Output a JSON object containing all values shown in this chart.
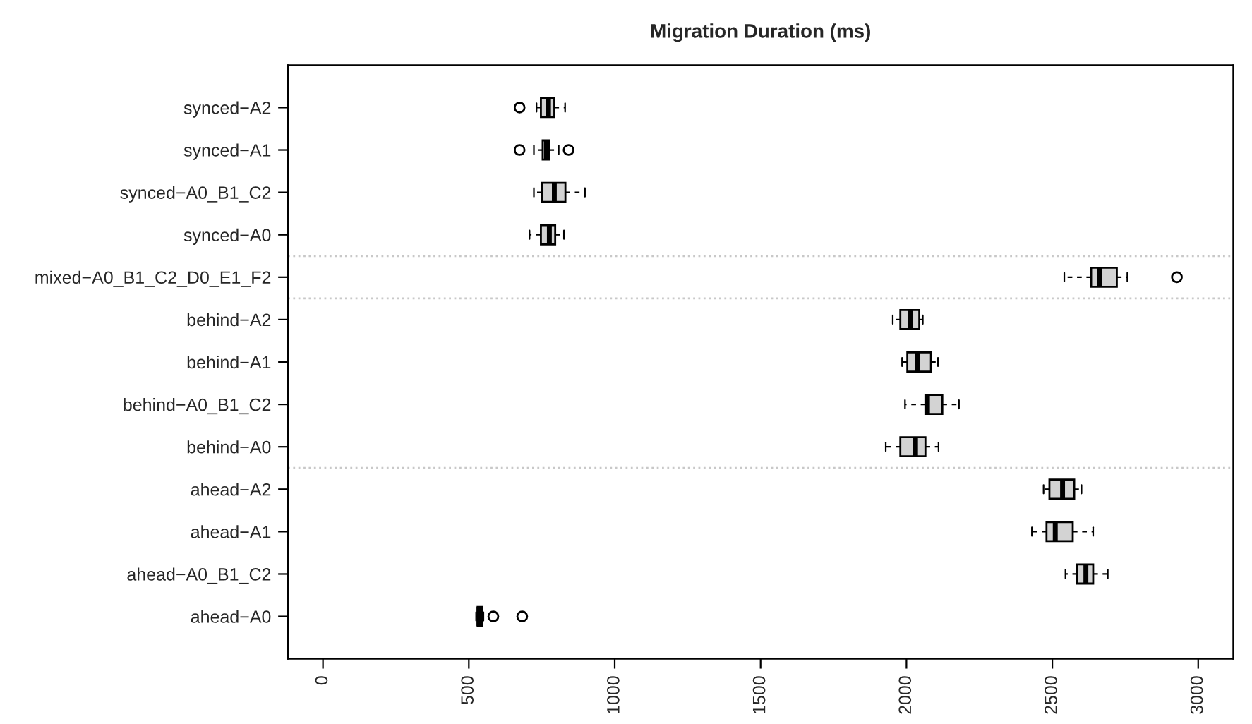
{
  "chart_data": {
    "type": "box",
    "title": "Migration Duration (ms)",
    "orientation": "horizontal",
    "categories": [
      "synced−A2",
      "synced−A1",
      "synced−A0_B1_C2",
      "synced−A0",
      "mixed−A0_B1_C2_D0_E1_F2",
      "behind−A2",
      "behind−A1",
      "behind−A0_B1_C2",
      "behind−A0",
      "ahead−A2",
      "ahead−A1",
      "ahead−A0_B1_C2",
      "ahead−A0"
    ],
    "boxes": [
      {
        "low": 732,
        "q1": 747,
        "median": 773,
        "q3": 793,
        "high": 830,
        "outliers": [
          674
        ]
      },
      {
        "low": 723,
        "q1": 753,
        "median": 766,
        "q3": 776,
        "high": 808,
        "outliers": [
          674,
          842
        ]
      },
      {
        "low": 723,
        "q1": 750,
        "median": 793,
        "q3": 831,
        "high": 898
      },
      {
        "low": 708,
        "q1": 747,
        "median": 776,
        "q3": 796,
        "high": 826
      },
      {
        "low": 2541,
        "q1": 2633,
        "median": 2661,
        "q3": 2721,
        "high": 2757,
        "outliers": [
          2927
        ]
      },
      {
        "low": 1953,
        "q1": 1979,
        "median": 2014,
        "q3": 2044,
        "high": 2056
      },
      {
        "low": 1985,
        "q1": 2003,
        "median": 2038,
        "q3": 2084,
        "high": 2108
      },
      {
        "low": 1995,
        "q1": 2065,
        "median": 2072,
        "q3": 2123,
        "high": 2180
      },
      {
        "low": 1929,
        "q1": 1979,
        "median": 2031,
        "q3": 2065,
        "high": 2110
      },
      {
        "low": 2470,
        "q1": 2490,
        "median": 2535,
        "q3": 2575,
        "high": 2600
      },
      {
        "low": 2430,
        "q1": 2480,
        "median": 2510,
        "q3": 2570,
        "high": 2640
      },
      {
        "low": 2545,
        "q1": 2585,
        "median": 2615,
        "q3": 2640,
        "high": 2690
      },
      {
        "low": 525,
        "q1": 530,
        "median": 535,
        "q3": 545,
        "high": 550,
        "outliers": [
          584,
          683
        ]
      }
    ],
    "color": "#d3d3d3",
    "xlim": [
      -120,
      3120
    ],
    "xticks": [
      0,
      500,
      1000,
      1500,
      2000,
      2500,
      3000
    ],
    "grid": false,
    "legend": false
  }
}
